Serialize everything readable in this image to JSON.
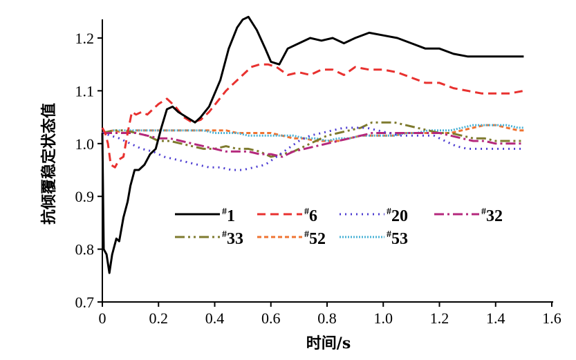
{
  "chart_data": {
    "type": "line",
    "title": "",
    "xlabel": "时间/s",
    "ylabel": "抗倾覆稳定状态值",
    "xlim": [
      0,
      1.6
    ],
    "ylim": [
      0.7,
      1.25
    ],
    "x_ticks": [
      "0",
      "0.2",
      "0.4",
      "0.6",
      "0.8",
      "1.0",
      "1.2",
      "1.4",
      "1.6"
    ],
    "y_ticks": [
      "0.7",
      "0.8",
      "0.9",
      "1.0",
      "1.1",
      "1.2"
    ],
    "grid": false,
    "legend_position": "lower-center",
    "series": [
      {
        "name": "#1",
        "color": "#000000",
        "dash": "solid",
        "width": 3,
        "points": [
          [
            0,
            1.02
          ],
          [
            0.005,
            0.8
          ],
          [
            0.015,
            0.79
          ],
          [
            0.025,
            0.755
          ],
          [
            0.035,
            0.79
          ],
          [
            0.05,
            0.82
          ],
          [
            0.06,
            0.815
          ],
          [
            0.075,
            0.86
          ],
          [
            0.09,
            0.89
          ],
          [
            0.1,
            0.92
          ],
          [
            0.115,
            0.95
          ],
          [
            0.13,
            0.95
          ],
          [
            0.15,
            0.96
          ],
          [
            0.17,
            0.98
          ],
          [
            0.19,
            0.99
          ],
          [
            0.21,
            1.03
          ],
          [
            0.23,
            1.065
          ],
          [
            0.25,
            1.07
          ],
          [
            0.27,
            1.06
          ],
          [
            0.3,
            1.05
          ],
          [
            0.33,
            1.04
          ],
          [
            0.35,
            1.05
          ],
          [
            0.38,
            1.07
          ],
          [
            0.42,
            1.12
          ],
          [
            0.45,
            1.18
          ],
          [
            0.48,
            1.22
          ],
          [
            0.5,
            1.235
          ],
          [
            0.52,
            1.24
          ],
          [
            0.55,
            1.215
          ],
          [
            0.58,
            1.18
          ],
          [
            0.6,
            1.155
          ],
          [
            0.63,
            1.15
          ],
          [
            0.66,
            1.18
          ],
          [
            0.7,
            1.19
          ],
          [
            0.74,
            1.2
          ],
          [
            0.78,
            1.195
          ],
          [
            0.82,
            1.2
          ],
          [
            0.86,
            1.19
          ],
          [
            0.9,
            1.2
          ],
          [
            0.95,
            1.21
          ],
          [
            1.0,
            1.205
          ],
          [
            1.05,
            1.2
          ],
          [
            1.1,
            1.19
          ],
          [
            1.15,
            1.18
          ],
          [
            1.2,
            1.18
          ],
          [
            1.25,
            1.17
          ],
          [
            1.3,
            1.165
          ],
          [
            1.35,
            1.165
          ],
          [
            1.4,
            1.165
          ],
          [
            1.45,
            1.165
          ],
          [
            1.5,
            1.165
          ]
        ]
      },
      {
        "name": "#6",
        "color": "#e8312f",
        "dash": "12 7",
        "width": 3,
        "points": [
          [
            0,
            1.03
          ],
          [
            0.01,
            1.02
          ],
          [
            0.02,
            1.0
          ],
          [
            0.03,
            0.96
          ],
          [
            0.045,
            0.955
          ],
          [
            0.06,
            0.97
          ],
          [
            0.075,
            0.975
          ],
          [
            0.09,
            1.02
          ],
          [
            0.105,
            1.06
          ],
          [
            0.12,
            1.055
          ],
          [
            0.14,
            1.06
          ],
          [
            0.16,
            1.055
          ],
          [
            0.18,
            1.065
          ],
          [
            0.2,
            1.075
          ],
          [
            0.23,
            1.085
          ],
          [
            0.26,
            1.07
          ],
          [
            0.29,
            1.05
          ],
          [
            0.32,
            1.04
          ],
          [
            0.35,
            1.045
          ],
          [
            0.38,
            1.06
          ],
          [
            0.41,
            1.08
          ],
          [
            0.44,
            1.1
          ],
          [
            0.47,
            1.115
          ],
          [
            0.5,
            1.13
          ],
          [
            0.53,
            1.145
          ],
          [
            0.56,
            1.15
          ],
          [
            0.59,
            1.15
          ],
          [
            0.62,
            1.145
          ],
          [
            0.66,
            1.13
          ],
          [
            0.7,
            1.135
          ],
          [
            0.74,
            1.13
          ],
          [
            0.78,
            1.14
          ],
          [
            0.82,
            1.14
          ],
          [
            0.86,
            1.13
          ],
          [
            0.9,
            1.145
          ],
          [
            0.95,
            1.14
          ],
          [
            1.0,
            1.14
          ],
          [
            1.05,
            1.135
          ],
          [
            1.1,
            1.125
          ],
          [
            1.15,
            1.115
          ],
          [
            1.2,
            1.115
          ],
          [
            1.25,
            1.105
          ],
          [
            1.3,
            1.1
          ],
          [
            1.35,
            1.095
          ],
          [
            1.4,
            1.095
          ],
          [
            1.45,
            1.095
          ],
          [
            1.5,
            1.1
          ]
        ]
      },
      {
        "name": "#20",
        "color": "#4b3bd1",
        "dash": "2 6",
        "width": 3,
        "points": [
          [
            0,
            1.02
          ],
          [
            0.03,
            1.015
          ],
          [
            0.06,
            1.01
          ],
          [
            0.1,
            1.0
          ],
          [
            0.14,
            0.99
          ],
          [
            0.18,
            0.985
          ],
          [
            0.22,
            0.975
          ],
          [
            0.26,
            0.97
          ],
          [
            0.3,
            0.965
          ],
          [
            0.34,
            0.96
          ],
          [
            0.38,
            0.955
          ],
          [
            0.42,
            0.955
          ],
          [
            0.46,
            0.95
          ],
          [
            0.5,
            0.95
          ],
          [
            0.54,
            0.955
          ],
          [
            0.58,
            0.96
          ],
          [
            0.62,
            0.975
          ],
          [
            0.66,
            0.99
          ],
          [
            0.7,
            1.005
          ],
          [
            0.74,
            1.015
          ],
          [
            0.78,
            1.02
          ],
          [
            0.82,
            1.025
          ],
          [
            0.86,
            1.03
          ],
          [
            0.9,
            1.03
          ],
          [
            0.94,
            1.03
          ],
          [
            0.98,
            1.025
          ],
          [
            1.02,
            1.02
          ],
          [
            1.06,
            1.015
          ],
          [
            1.1,
            1.015
          ],
          [
            1.14,
            1.015
          ],
          [
            1.18,
            1.015
          ],
          [
            1.22,
            1.005
          ],
          [
            1.26,
            0.995
          ],
          [
            1.3,
            0.99
          ],
          [
            1.34,
            0.99
          ],
          [
            1.38,
            0.99
          ],
          [
            1.42,
            0.99
          ],
          [
            1.46,
            0.99
          ],
          [
            1.5,
            0.99
          ]
        ]
      },
      {
        "name": "#32",
        "color": "#b4287c",
        "dash": "14 5 3 5",
        "width": 3,
        "points": [
          [
            0,
            1.02
          ],
          [
            0.04,
            1.02
          ],
          [
            0.08,
            1.02
          ],
          [
            0.12,
            1.02
          ],
          [
            0.16,
            1.015
          ],
          [
            0.2,
            1.01
          ],
          [
            0.24,
            1.01
          ],
          [
            0.28,
            1.005
          ],
          [
            0.32,
            1.0
          ],
          [
            0.36,
            0.995
          ],
          [
            0.4,
            0.99
          ],
          [
            0.44,
            0.985
          ],
          [
            0.48,
            0.985
          ],
          [
            0.52,
            0.985
          ],
          [
            0.56,
            0.98
          ],
          [
            0.6,
            0.98
          ],
          [
            0.64,
            0.975
          ],
          [
            0.68,
            0.985
          ],
          [
            0.72,
            0.99
          ],
          [
            0.76,
            0.995
          ],
          [
            0.8,
            1.0
          ],
          [
            0.84,
            1.005
          ],
          [
            0.88,
            1.01
          ],
          [
            0.92,
            1.015
          ],
          [
            0.96,
            1.02
          ],
          [
            1.0,
            1.02
          ],
          [
            1.04,
            1.02
          ],
          [
            1.08,
            1.02
          ],
          [
            1.12,
            1.02
          ],
          [
            1.16,
            1.02
          ],
          [
            1.2,
            1.02
          ],
          [
            1.24,
            1.015
          ],
          [
            1.28,
            1.01
          ],
          [
            1.32,
            1.005
          ],
          [
            1.36,
            1.005
          ],
          [
            1.4,
            1.0
          ],
          [
            1.44,
            1.0
          ],
          [
            1.48,
            1.0
          ],
          [
            1.5,
            1.0
          ]
        ]
      },
      {
        "name": "#33",
        "color": "#7e7a2e",
        "dash": "14 5 3 5 3 5",
        "width": 3,
        "points": [
          [
            0,
            1.02
          ],
          [
            0.04,
            1.025
          ],
          [
            0.08,
            1.025
          ],
          [
            0.12,
            1.02
          ],
          [
            0.16,
            1.015
          ],
          [
            0.2,
            1.005
          ],
          [
            0.24,
            1.005
          ],
          [
            0.28,
            1.0
          ],
          [
            0.32,
            0.995
          ],
          [
            0.36,
            0.99
          ],
          [
            0.4,
            0.99
          ],
          [
            0.44,
            0.995
          ],
          [
            0.48,
            0.99
          ],
          [
            0.52,
            0.99
          ],
          [
            0.56,
            0.985
          ],
          [
            0.6,
            0.975
          ],
          [
            0.64,
            0.98
          ],
          [
            0.68,
            0.985
          ],
          [
            0.72,
            0.995
          ],
          [
            0.76,
            1.005
          ],
          [
            0.8,
            1.015
          ],
          [
            0.84,
            1.02
          ],
          [
            0.88,
            1.025
          ],
          [
            0.92,
            1.03
          ],
          [
            0.96,
            1.04
          ],
          [
            1.0,
            1.04
          ],
          [
            1.04,
            1.04
          ],
          [
            1.08,
            1.035
          ],
          [
            1.12,
            1.03
          ],
          [
            1.16,
            1.025
          ],
          [
            1.2,
            1.02
          ],
          [
            1.24,
            1.02
          ],
          [
            1.28,
            1.015
          ],
          [
            1.32,
            1.01
          ],
          [
            1.36,
            1.01
          ],
          [
            1.4,
            1.005
          ],
          [
            1.44,
            1.005
          ],
          [
            1.48,
            1.005
          ],
          [
            1.5,
            1.005
          ]
        ]
      },
      {
        "name": "#52",
        "color": "#ef7331",
        "dash": "6 4",
        "width": 3,
        "points": [
          [
            0,
            1.02
          ],
          [
            0.04,
            1.025
          ],
          [
            0.08,
            1.02
          ],
          [
            0.12,
            1.025
          ],
          [
            0.16,
            1.025
          ],
          [
            0.2,
            1.025
          ],
          [
            0.24,
            1.025
          ],
          [
            0.28,
            1.025
          ],
          [
            0.32,
            1.025
          ],
          [
            0.36,
            1.025
          ],
          [
            0.4,
            1.025
          ],
          [
            0.44,
            1.025
          ],
          [
            0.48,
            1.02
          ],
          [
            0.52,
            1.02
          ],
          [
            0.56,
            1.02
          ],
          [
            0.6,
            1.02
          ],
          [
            0.64,
            1.015
          ],
          [
            0.68,
            1.01
          ],
          [
            0.72,
            1.01
          ],
          [
            0.76,
            1.005
          ],
          [
            0.8,
            1.005
          ],
          [
            0.84,
            1.005
          ],
          [
            0.88,
            1.01
          ],
          [
            0.92,
            1.015
          ],
          [
            0.96,
            1.015
          ],
          [
            1.0,
            1.015
          ],
          [
            1.04,
            1.015
          ],
          [
            1.08,
            1.02
          ],
          [
            1.12,
            1.02
          ],
          [
            1.16,
            1.02
          ],
          [
            1.2,
            1.02
          ],
          [
            1.24,
            1.02
          ],
          [
            1.28,
            1.025
          ],
          [
            1.32,
            1.03
          ],
          [
            1.36,
            1.035
          ],
          [
            1.4,
            1.035
          ],
          [
            1.44,
            1.03
          ],
          [
            1.48,
            1.025
          ],
          [
            1.5,
            1.025
          ]
        ]
      },
      {
        "name": "#53",
        "color": "#49b2d6",
        "dash": "2 2",
        "width": 3,
        "points": [
          [
            0,
            1.02
          ],
          [
            0.04,
            1.025
          ],
          [
            0.08,
            1.025
          ],
          [
            0.12,
            1.025
          ],
          [
            0.16,
            1.025
          ],
          [
            0.2,
            1.025
          ],
          [
            0.24,
            1.025
          ],
          [
            0.28,
            1.025
          ],
          [
            0.32,
            1.025
          ],
          [
            0.36,
            1.025
          ],
          [
            0.4,
            1.02
          ],
          [
            0.44,
            1.02
          ],
          [
            0.48,
            1.02
          ],
          [
            0.52,
            1.015
          ],
          [
            0.56,
            1.015
          ],
          [
            0.6,
            1.015
          ],
          [
            0.64,
            1.015
          ],
          [
            0.68,
            1.015
          ],
          [
            0.72,
            1.01
          ],
          [
            0.76,
            1.01
          ],
          [
            0.8,
            1.005
          ],
          [
            0.84,
            1.01
          ],
          [
            0.88,
            1.01
          ],
          [
            0.92,
            1.015
          ],
          [
            0.96,
            1.015
          ],
          [
            1.0,
            1.015
          ],
          [
            1.04,
            1.015
          ],
          [
            1.08,
            1.02
          ],
          [
            1.12,
            1.02
          ],
          [
            1.16,
            1.025
          ],
          [
            1.2,
            1.025
          ],
          [
            1.24,
            1.025
          ],
          [
            1.28,
            1.03
          ],
          [
            1.32,
            1.035
          ],
          [
            1.36,
            1.035
          ],
          [
            1.4,
            1.035
          ],
          [
            1.44,
            1.035
          ],
          [
            1.48,
            1.03
          ],
          [
            1.5,
            1.03
          ]
        ]
      }
    ],
    "legend_rows": [
      [
        "#1",
        "#6",
        "#20",
        "#32"
      ],
      [
        "#33",
        "#52",
        "#53"
      ]
    ]
  }
}
